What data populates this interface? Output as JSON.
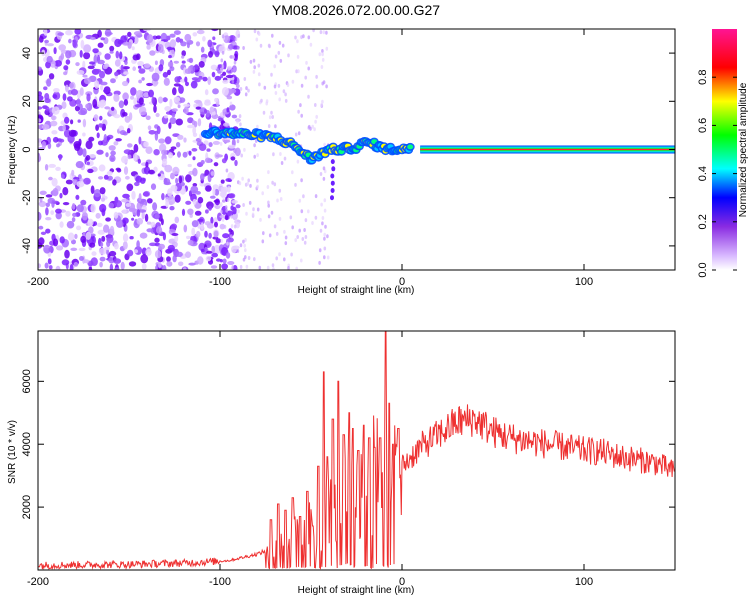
{
  "title": "YM08.2026.072.00.00.G27",
  "chart_data": [
    {
      "type": "heatmap",
      "xlabel": "Height of straight line (km)",
      "ylabel": "Frequency (Hz)",
      "xlim": [
        -200,
        150
      ],
      "ylim": [
        -50,
        50
      ],
      "xticks": [
        -200,
        -100,
        0,
        100
      ],
      "yticks": [
        -40,
        -20,
        0,
        20,
        40
      ],
      "colorbar": {
        "label": "Normalized spectral amplitude",
        "range": [
          0,
          1
        ],
        "ticks": [
          "0.0",
          "0.2",
          "0.4",
          "0.6",
          "0.8"
        ],
        "colormap": [
          "#ffffff",
          "#8a2be2",
          "#0000ff",
          "#00ffff",
          "#00ff00",
          "#ffff00",
          "#ff0000",
          "#ff1493"
        ]
      },
      "features": {
        "noise_region_km": [
          -200,
          -100
        ],
        "signal_line_frequency_hz": 0,
        "signal_line_from_km": 10,
        "signal_line_to_km": 150,
        "signal_track_km": [
          -108,
          -100,
          -90,
          -80,
          -70,
          -60,
          -55,
          -50,
          -45,
          -40,
          -35,
          -30,
          -25,
          -20,
          -15,
          -10,
          -5,
          0,
          5
        ],
        "signal_track_hz": [
          7,
          7,
          6.5,
          6,
          5,
          2,
          -1,
          -4,
          -2,
          0,
          0,
          0.5,
          1,
          3,
          2,
          0.5,
          0,
          0.5,
          0
        ]
      }
    },
    {
      "type": "line",
      "xlabel": "Height of straight line (km)",
      "ylabel": "SNR (10 * v/v)",
      "xlim": [
        -200,
        150
      ],
      "ylim": [
        0,
        7600
      ],
      "xticks": [
        -200,
        -100,
        0,
        100
      ],
      "yticks": [
        2000,
        4000,
        6000
      ],
      "series": [
        {
          "name": "SNR",
          "color": "#ee3030",
          "x": [
            -200,
            -150,
            -120,
            -95,
            -80,
            -70,
            -65,
            -60,
            -55,
            -50,
            -45,
            -40,
            -35,
            -30,
            -25,
            -20,
            -15,
            -10,
            -5,
            0,
            10,
            20,
            30,
            40,
            50,
            60,
            70,
            80,
            90,
            100,
            110,
            120,
            130,
            140,
            150
          ],
          "y": [
            150,
            180,
            220,
            300,
            500,
            700,
            1100,
            1500,
            1000,
            1700,
            700,
            2600,
            1800,
            3200,
            2400,
            3100,
            3600,
            3300,
            4000,
            3300,
            3900,
            4300,
            4700,
            4800,
            4400,
            4200,
            4100,
            4000,
            3900,
            3800,
            3750,
            3600,
            3500,
            3400,
            3100
          ]
        }
      ],
      "annotations": {
        "spike_peaks_km": [
          -72,
          -68,
          -64,
          -60,
          -56,
          -52,
          -49,
          -46,
          -43,
          -41,
          -38,
          -35,
          -32,
          -29,
          -27,
          -24,
          -21,
          -18,
          -15,
          -12,
          -9,
          -7,
          -5,
          -2
        ],
        "spike_peaks_snr": [
          1600,
          2100,
          1900,
          2300,
          1700,
          2500,
          1400,
          3300,
          6300,
          3600,
          4800,
          6000,
          4300,
          5000,
          4500,
          3800,
          4600,
          4200,
          3900,
          4200,
          7600,
          5300,
          4000,
          4500
        ]
      }
    }
  ]
}
